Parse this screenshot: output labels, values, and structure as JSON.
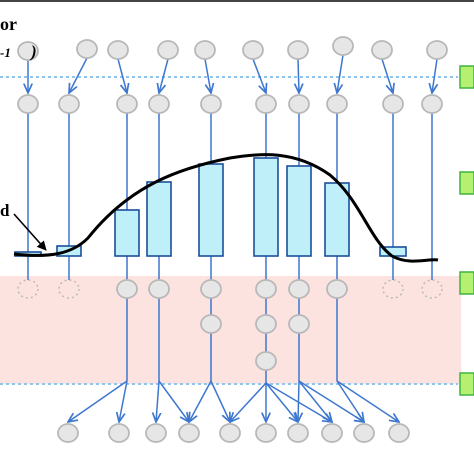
{
  "labels": {
    "top_left_word": "or",
    "top_left_subscript": "-1",
    "top_left_paren": ")",
    "left_marker": "d"
  },
  "colors": {
    "node_fill": "#e6e6e6",
    "node_stroke": "#b8b8b8",
    "arrow": "#3d77cf",
    "dotted_line": "#8ec5ef",
    "bar_fill": "#bff0fa",
    "bar_stroke": "#1b4f9b",
    "curve": "#000000",
    "band_fill": "#fde3df",
    "side_marker_fill": "#b6f071",
    "side_marker_stroke": "#3fb33f",
    "pointer": "#000000"
  },
  "chart_data": {
    "type": "bar",
    "title": "",
    "xlabel": "",
    "ylabel": "",
    "bars": [
      {
        "x": 28,
        "height": 4
      },
      {
        "x": 69,
        "height": 10
      },
      {
        "x": 127,
        "height": 46
      },
      {
        "x": 159,
        "height": 74
      },
      {
        "x": 211,
        "height": 92
      },
      {
        "x": 266,
        "height": 98
      },
      {
        "x": 299,
        "height": 90
      },
      {
        "x": 337,
        "height": 73
      },
      {
        "x": 393,
        "height": 9
      }
    ]
  },
  "network": {
    "top_nodes": [
      28,
      87,
      118,
      168,
      205,
      253,
      298,
      343,
      382,
      437
    ],
    "second_nodes": [
      28,
      69,
      127,
      159,
      211,
      266,
      299,
      337,
      393,
      432
    ],
    "bottom_nodes": [
      68,
      119,
      156,
      189,
      230,
      266,
      298,
      332,
      364,
      399
    ]
  }
}
